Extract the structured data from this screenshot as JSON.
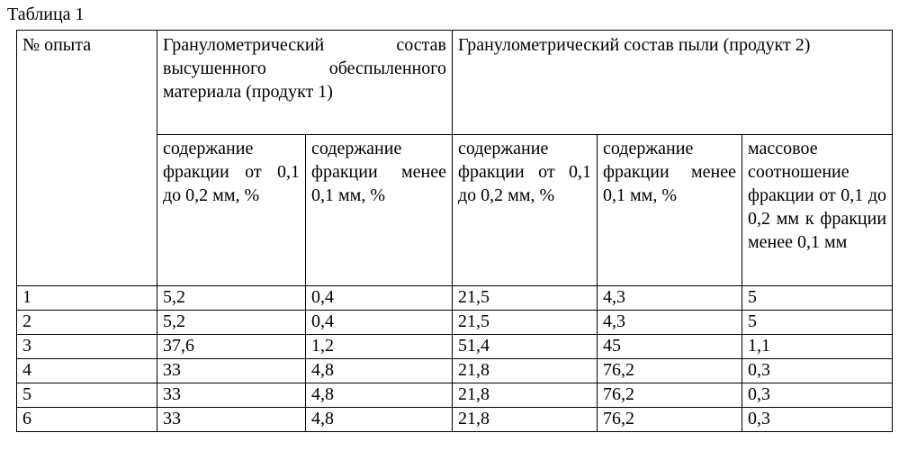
{
  "caption": "Таблица 1",
  "header": {
    "experiment_no": "№ опыта",
    "product1": "Гранулометрический состав высушенного обеспыленного материала (продукт 1)",
    "product2": "Гранулометрический состав пыли (продукт 2)",
    "sub": [
      "содержание фракции от 0,1 до 0,2 мм, %",
      "содержание фракции менее 0,1 мм, %",
      "содержание фракции от 0,1 до 0,2 мм, %",
      "содержание фракции менее 0,1 мм, %",
      "массовое соотношение фракции от 0,1 до 0,2 мм к фракции менее 0,1 мм"
    ]
  },
  "rows": [
    [
      "1",
      "5,2",
      "0,4",
      "21,5",
      "4,3",
      "5"
    ],
    [
      "2",
      "5,2",
      "0,4",
      "21,5",
      "4,3",
      "5"
    ],
    [
      "3",
      "37,6",
      "1,2",
      "51,4",
      "45",
      "1,1"
    ],
    [
      "4",
      "33",
      "4,8",
      "21,8",
      "76,2",
      "0,3"
    ],
    [
      "5",
      "33",
      "4,8",
      "21,8",
      "76,2",
      "0,3"
    ],
    [
      "6",
      "33",
      "4,8",
      "21,8",
      "76,2",
      "0,3"
    ]
  ]
}
